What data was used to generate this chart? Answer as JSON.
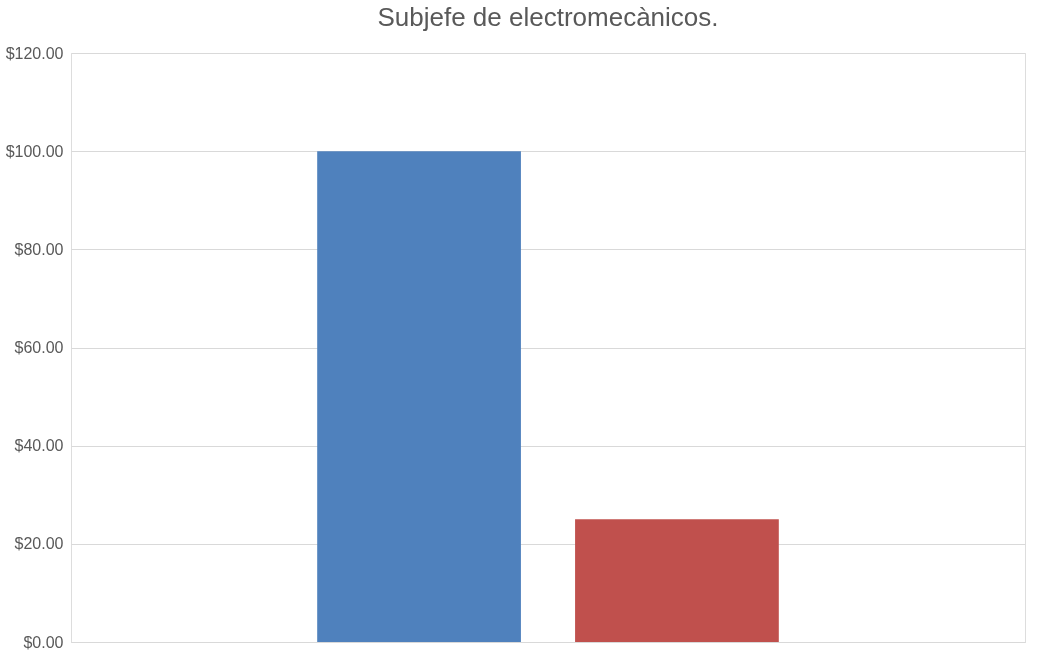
{
  "chart_data": {
    "type": "bar",
    "title": "Subjefe de electromecànicos.",
    "categories": [
      null
    ],
    "series": [
      {
        "color": "#4f81bd",
        "values": [
          100
        ]
      },
      {
        "color": "#c0504d",
        "values": [
          25
        ]
      }
    ],
    "ylim": [
      0,
      120
    ],
    "yticks": [
      {
        "value": 0,
        "label": "$0.00"
      },
      {
        "value": 20,
        "label": "$20.00"
      },
      {
        "value": 40,
        "label": "$40.00"
      },
      {
        "value": 60,
        "label": "$60.00"
      },
      {
        "value": 80,
        "label": "$80.00"
      },
      {
        "value": 100,
        "label": "$100.00"
      },
      {
        "value": 120,
        "label": "$120.00"
      }
    ],
    "grid": "y",
    "legend": false
  }
}
